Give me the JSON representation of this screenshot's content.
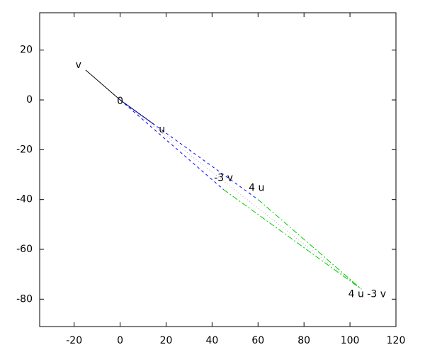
{
  "chart_data": {
    "type": "vector",
    "points": [
      {
        "label": "0",
        "x": 0,
        "y": 0
      },
      {
        "label": "v",
        "x": -15,
        "y": 12
      },
      {
        "label": "u",
        "x": 15,
        "y": -10
      },
      {
        "label": "-3 v",
        "x": 45,
        "y": -36
      },
      {
        "label": "4 u",
        "x": 60,
        "y": -40
      },
      {
        "label": "4 u -3 v",
        "x": 105,
        "y": -76
      }
    ],
    "xlim": [
      -35,
      120
    ],
    "ylim": [
      -91,
      35
    ],
    "xticks": [
      -20,
      0,
      20,
      40,
      60,
      80,
      100,
      120
    ],
    "yticks": [
      -80,
      -60,
      -40,
      -20,
      0,
      20
    ]
  }
}
